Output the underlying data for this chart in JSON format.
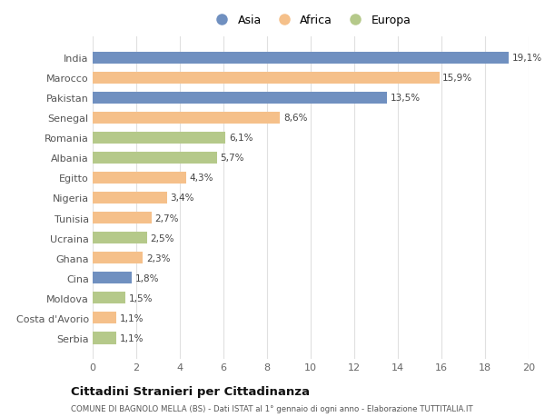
{
  "countries": [
    "India",
    "Marocco",
    "Pakistan",
    "Senegal",
    "Romania",
    "Albania",
    "Egitto",
    "Nigeria",
    "Tunisia",
    "Ucraina",
    "Ghana",
    "Cina",
    "Moldova",
    "Costa d'Avorio",
    "Serbia"
  ],
  "values": [
    19.1,
    15.9,
    13.5,
    8.6,
    6.1,
    5.7,
    4.3,
    3.4,
    2.7,
    2.5,
    2.3,
    1.8,
    1.5,
    1.1,
    1.1
  ],
  "labels": [
    "19,1%",
    "15,9%",
    "13,5%",
    "8,6%",
    "6,1%",
    "5,7%",
    "4,3%",
    "3,4%",
    "2,7%",
    "2,5%",
    "2,3%",
    "1,8%",
    "1,5%",
    "1,1%",
    "1,1%"
  ],
  "continents": [
    "Asia",
    "Africa",
    "Asia",
    "Africa",
    "Europa",
    "Europa",
    "Africa",
    "Africa",
    "Africa",
    "Europa",
    "Africa",
    "Asia",
    "Europa",
    "Africa",
    "Europa"
  ],
  "colors": {
    "Asia": "#7090c0",
    "Africa": "#f5c08a",
    "Europa": "#b5c98a"
  },
  "legend_labels": [
    "Asia",
    "Africa",
    "Europa"
  ],
  "title": "Cittadini Stranieri per Cittadinanza",
  "subtitle": "COMUNE DI BAGNOLO MELLA (BS) - Dati ISTAT al 1° gennaio di ogni anno - Elaborazione TUTTITALIA.IT",
  "xlim": [
    0,
    20
  ],
  "xticks": [
    0,
    2,
    4,
    6,
    8,
    10,
    12,
    14,
    16,
    18,
    20
  ],
  "background_color": "#ffffff",
  "grid_color": "#e0e0e0"
}
